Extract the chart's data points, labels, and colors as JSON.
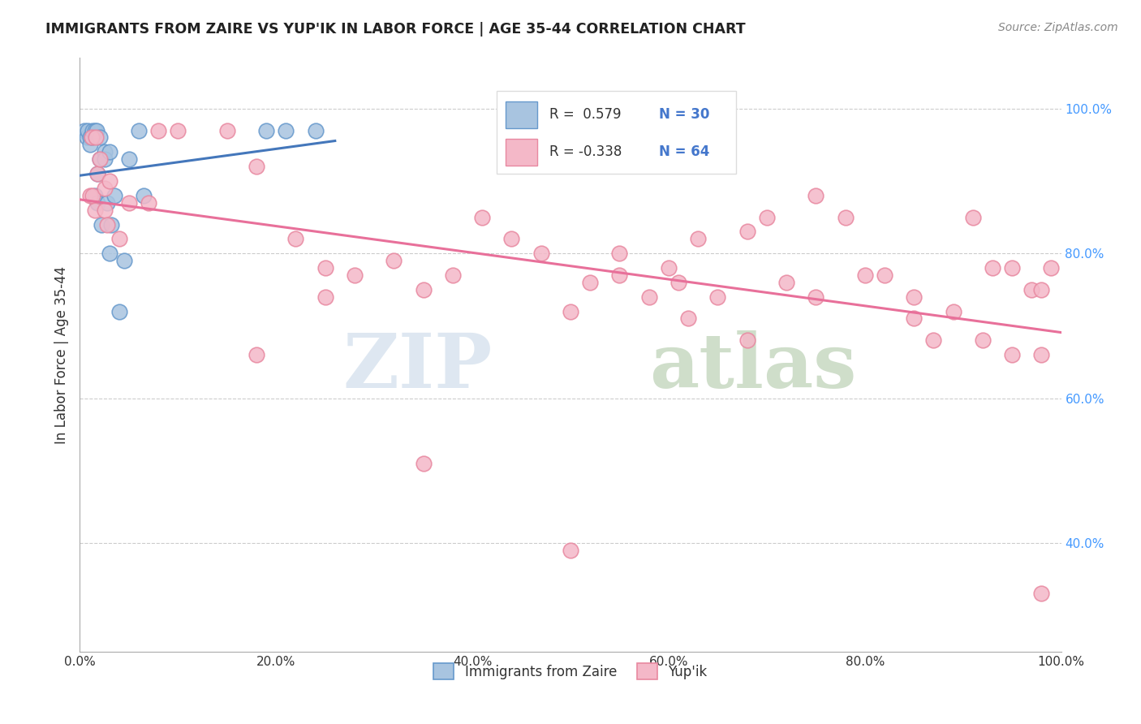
{
  "title": "IMMIGRANTS FROM ZAIRE VS YUP'IK IN LABOR FORCE | AGE 35-44 CORRELATION CHART",
  "source": "Source: ZipAtlas.com",
  "ylabel": "In Labor Force | Age 35-44",
  "x_tick_labels": [
    "0.0%",
    "20.0%",
    "40.0%",
    "60.0%",
    "80.0%",
    "100.0%"
  ],
  "x_tick_vals": [
    0,
    0.2,
    0.4,
    0.6,
    0.8,
    1.0
  ],
  "y_tick_labels": [
    "100.0%",
    "80.0%",
    "60.0%",
    "40.0%"
  ],
  "y_tick_vals": [
    1.0,
    0.8,
    0.6,
    0.4
  ],
  "xlim": [
    0,
    1.0
  ],
  "ylim": [
    0.25,
    1.07
  ],
  "zaire_color": "#a8c4e0",
  "zaire_edge": "#6699cc",
  "zaire_line_color": "#4477bb",
  "yupik_color": "#f4b8c8",
  "yupik_edge": "#e888a0",
  "yupik_line_color": "#e8709a",
  "watermark_zip": "ZIP",
  "watermark_atlas": "atlas",
  "watermark_color_zip": "#c8d8e8",
  "watermark_color_atlas": "#b0c8a8",
  "zaire_x": [
    0.005,
    0.007,
    0.008,
    0.01,
    0.01,
    0.012,
    0.013,
    0.015,
    0.015,
    0.017,
    0.018,
    0.018,
    0.02,
    0.02,
    0.022,
    0.025,
    0.025,
    0.028,
    0.03,
    0.03,
    0.032,
    0.035,
    0.04,
    0.045,
    0.05,
    0.06,
    0.065,
    0.19,
    0.21,
    0.24
  ],
  "zaire_y": [
    0.97,
    0.96,
    0.97,
    0.96,
    0.95,
    0.96,
    0.97,
    0.88,
    0.97,
    0.97,
    0.91,
    0.87,
    0.93,
    0.96,
    0.84,
    0.94,
    0.93,
    0.87,
    0.94,
    0.8,
    0.84,
    0.88,
    0.72,
    0.79,
    0.93,
    0.97,
    0.88,
    0.97,
    0.97,
    0.97
  ],
  "yupik_x": [
    0.01,
    0.012,
    0.013,
    0.015,
    0.016,
    0.018,
    0.02,
    0.025,
    0.025,
    0.028,
    0.03,
    0.04,
    0.05,
    0.07,
    0.08,
    0.1,
    0.15,
    0.18,
    0.22,
    0.25,
    0.28,
    0.32,
    0.35,
    0.38,
    0.41,
    0.44,
    0.47,
    0.5,
    0.52,
    0.55,
    0.58,
    0.61,
    0.63,
    0.65,
    0.68,
    0.7,
    0.72,
    0.75,
    0.78,
    0.8,
    0.82,
    0.85,
    0.87,
    0.89,
    0.91,
    0.93,
    0.95,
    0.97,
    0.98,
    0.99,
    0.18,
    0.25,
    0.35,
    0.55,
    0.62,
    0.68,
    0.75,
    0.85,
    0.92,
    0.98,
    0.5,
    0.6,
    0.98,
    0.95
  ],
  "yupik_y": [
    0.88,
    0.96,
    0.88,
    0.86,
    0.96,
    0.91,
    0.93,
    0.89,
    0.86,
    0.84,
    0.9,
    0.82,
    0.87,
    0.87,
    0.97,
    0.97,
    0.97,
    0.92,
    0.82,
    0.78,
    0.77,
    0.79,
    0.75,
    0.77,
    0.85,
    0.82,
    0.8,
    0.72,
    0.76,
    0.8,
    0.74,
    0.76,
    0.82,
    0.74,
    0.83,
    0.85,
    0.76,
    0.88,
    0.85,
    0.77,
    0.77,
    0.74,
    0.68,
    0.72,
    0.85,
    0.78,
    0.78,
    0.75,
    0.75,
    0.78,
    0.66,
    0.74,
    0.51,
    0.77,
    0.71,
    0.68,
    0.74,
    0.71,
    0.68,
    0.66,
    0.39,
    0.78,
    0.33,
    0.66
  ]
}
